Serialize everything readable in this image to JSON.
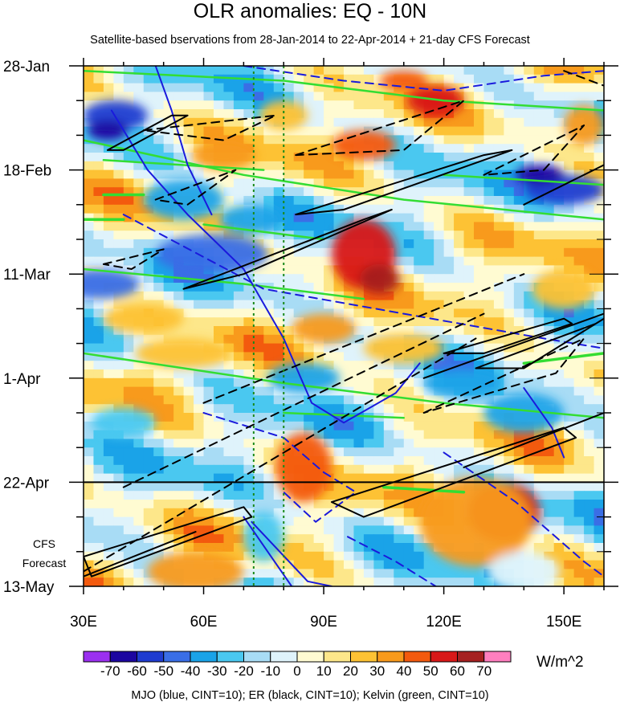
{
  "chart_data": {
    "type": "heatmap",
    "title": "OLR anomalies: EQ - 10N",
    "subtitle": "Satellite-based bservations from 28-Jan-2014 to 22-Apr-2014 + 21-day CFS Forecast",
    "xlabel": "",
    "ylabel": "",
    "x_ticks": [
      "30E",
      "60E",
      "90E",
      "120E",
      "150E"
    ],
    "x_tick_values": [
      30,
      60,
      90,
      120,
      150
    ],
    "xlim": [
      30,
      160
    ],
    "y_ticks": [
      "28-Jan",
      "18-Feb",
      "11-Mar",
      "1-Apr",
      "22-Apr",
      "13-May"
    ],
    "y_tick_days": [
      0,
      21,
      42,
      63,
      84,
      105
    ],
    "ylim_days": [
      0,
      105
    ],
    "y_axis_direction": "time increases downward",
    "observation_end": "22-Apr",
    "forecast_label_lines": [
      "CFS",
      "Forecast"
    ],
    "reference_lines_lon": [
      72.5,
      80
    ],
    "colorbar": {
      "levels": [
        "-70",
        "-60",
        "-50",
        "-40",
        "-30",
        "-20",
        "-10",
        "0",
        "10",
        "20",
        "30",
        "40",
        "50",
        "60",
        "70"
      ],
      "colors": [
        "#9b30f0",
        "#1c06a0",
        "#1f3cd0",
        "#3a6ee6",
        "#1aa3e8",
        "#4ac8f0",
        "#a8dcf5",
        "#dff3fb",
        "#fffbd2",
        "#fde78a",
        "#fdc234",
        "#f89a1c",
        "#f35a0e",
        "#d81818",
        "#a52020",
        "#ff7fbf"
      ],
      "units": "W/m^2"
    },
    "contour_legend": "MJO (blue, CINT=10); ER (black, CINT=10); Kelvin (green, CINT=10)",
    "contour_colors": {
      "mjo": "#1a1adc",
      "er": "#000000",
      "kelvin": "#33dd33"
    },
    "blobs": [
      {
        "lon": 38,
        "day": 10,
        "rx": 8,
        "ry": 3,
        "v": -60
      },
      {
        "lon": 36,
        "day": 13,
        "rx": 5,
        "ry": 2,
        "v": -70
      },
      {
        "lon": 34,
        "day": 44,
        "rx": 10,
        "ry": 3,
        "v": -50
      },
      {
        "lon": 62,
        "day": 38,
        "rx": 14,
        "ry": 4,
        "v": -50
      },
      {
        "lon": 72,
        "day": 31,
        "rx": 8,
        "ry": 3,
        "v": -40
      },
      {
        "lon": 55,
        "day": 27,
        "rx": 10,
        "ry": 4,
        "v": -40
      },
      {
        "lon": 100,
        "day": 38,
        "rx": 8,
        "ry": 7,
        "v": 50
      },
      {
        "lon": 104,
        "day": 43,
        "rx": 5,
        "ry": 3,
        "v": 60
      },
      {
        "lon": 118,
        "day": 7,
        "rx": 7,
        "ry": 3,
        "v": 50
      },
      {
        "lon": 110,
        "day": 3,
        "rx": 6,
        "ry": 2,
        "v": 40
      },
      {
        "lon": 100,
        "day": 16,
        "rx": 8,
        "ry": 3,
        "v": 40
      },
      {
        "lon": 135,
        "day": 90,
        "rx": 9,
        "ry": 6,
        "v": 50
      },
      {
        "lon": 128,
        "day": 92,
        "rx": 14,
        "ry": 9,
        "v": 30
      },
      {
        "lon": 58,
        "day": 102,
        "rx": 12,
        "ry": 4,
        "v": 30
      },
      {
        "lon": 85,
        "day": 81,
        "rx": 7,
        "ry": 7,
        "v": 40
      },
      {
        "lon": 150,
        "day": 25,
        "rx": 10,
        "ry": 3,
        "v": -60
      },
      {
        "lon": 144,
        "day": 22,
        "rx": 6,
        "ry": 2,
        "v": -70
      },
      {
        "lon": 140,
        "day": 70,
        "rx": 10,
        "ry": 4,
        "v": -40
      },
      {
        "lon": 125,
        "day": 64,
        "rx": 10,
        "ry": 3,
        "v": -40
      },
      {
        "lon": 85,
        "day": 63,
        "rx": 9,
        "ry": 3,
        "v": -40
      },
      {
        "lon": 55,
        "day": 58,
        "rx": 12,
        "ry": 3,
        "v": 20
      },
      {
        "lon": 45,
        "day": 51,
        "rx": 10,
        "ry": 3,
        "v": 20
      },
      {
        "lon": 75,
        "day": 95,
        "rx": 5,
        "ry": 5,
        "v": -30
      },
      {
        "lon": 150,
        "day": 45,
        "rx": 8,
        "ry": 4,
        "v": 20
      },
      {
        "lon": 155,
        "day": 12,
        "rx": 5,
        "ry": 4,
        "v": 30
      },
      {
        "lon": 90,
        "day": 53,
        "rx": 8,
        "ry": 3,
        "v": 30
      },
      {
        "lon": 110,
        "day": 57,
        "rx": 10,
        "ry": 3,
        "v": 20
      },
      {
        "lon": 40,
        "day": 72,
        "rx": 8,
        "ry": 3,
        "v": -30
      },
      {
        "lon": 65,
        "day": 18,
        "rx": 8,
        "ry": 3,
        "v": 30
      },
      {
        "lon": 80,
        "day": 10,
        "rx": 6,
        "ry": 3,
        "v": 20
      },
      {
        "lon": 140,
        "day": 102,
        "rx": 9,
        "ry": 4,
        "v": -10
      }
    ],
    "contours": {
      "er_solid": [
        [
          [
            36,
            17
          ],
          [
            52,
            10
          ],
          [
            56,
            10
          ],
          [
            40,
            17
          ],
          [
            36,
            17
          ]
        ],
        [
          [
            55,
            45
          ],
          [
            100,
            31
          ],
          [
            107,
            29
          ],
          [
            70,
            42
          ],
          [
            55,
            45
          ]
        ],
        [
          [
            83,
            30
          ],
          [
            130,
            18
          ],
          [
            137,
            17
          ],
          [
            95,
            29
          ],
          [
            83,
            30
          ]
        ],
        [
          [
            128,
            61
          ],
          [
            158,
            52
          ],
          [
            160,
            51
          ],
          [
            140,
            61
          ],
          [
            128,
            61
          ]
        ],
        [
          [
            120,
            58
          ],
          [
            150,
            51
          ],
          [
            152,
            52
          ],
          [
            130,
            58
          ],
          [
            120,
            58
          ]
        ],
        [
          [
            115,
            63
          ],
          [
            160,
            50
          ]
        ],
        [
          [
            92,
            88
          ],
          [
            150,
            73
          ],
          [
            153,
            75
          ],
          [
            100,
            91
          ],
          [
            92,
            88
          ]
        ],
        [
          [
            30,
            99
          ],
          [
            70,
            89
          ],
          [
            72,
            91
          ],
          [
            32,
            103
          ],
          [
            30,
            99
          ]
        ],
        [
          [
            30,
            103
          ],
          [
            58,
            94
          ]
        ],
        [
          [
            125,
            81
          ],
          [
            160,
            70
          ]
        ],
        [
          [
            140,
            28
          ],
          [
            160,
            20
          ]
        ]
      ],
      "er_dashed": [
        [
          [
            45,
            13
          ],
          [
            78,
            10
          ],
          [
            65,
            15
          ],
          [
            45,
            13
          ]
        ],
        [
          [
            48,
            27
          ],
          [
            68,
            21
          ],
          [
            56,
            28
          ],
          [
            48,
            27
          ]
        ],
        [
          [
            35,
            40
          ],
          [
            50,
            37
          ],
          [
            42,
            41
          ],
          [
            35,
            40
          ]
        ],
        [
          [
            30,
            102
          ],
          [
            128,
            55
          ]
        ],
        [
          [
            40,
            85
          ],
          [
            130,
            50
          ]
        ],
        [
          [
            60,
            68
          ],
          [
            140,
            42
          ]
        ],
        [
          [
            83,
            18
          ],
          [
            125,
            7
          ],
          [
            110,
            17
          ],
          [
            83,
            18
          ]
        ],
        [
          [
            130,
            22
          ],
          [
            155,
            12
          ],
          [
            145,
            21
          ],
          [
            130,
            22
          ]
        ],
        [
          [
            115,
            70
          ],
          [
            155,
            55
          ],
          [
            148,
            62
          ],
          [
            115,
            70
          ]
        ],
        [
          [
            150,
            1
          ],
          [
            160,
            4
          ]
        ]
      ],
      "mjo_solid": [
        [
          [
            37,
            9
          ],
          [
            46,
            21
          ],
          [
            56,
            30
          ],
          [
            70,
            41
          ],
          [
            80,
            55
          ],
          [
            87,
            68
          ],
          [
            95,
            72
          ],
          [
            108,
            66
          ],
          [
            114,
            60
          ]
        ],
        [
          [
            48,
            0
          ],
          [
            52,
            9
          ],
          [
            56,
            20
          ],
          [
            62,
            30
          ]
        ],
        [
          [
            72,
            92
          ],
          [
            86,
            104
          ],
          [
            92,
            105
          ]
        ],
        [
          [
            70,
            91
          ],
          [
            76,
            98
          ],
          [
            82,
            105
          ]
        ],
        [
          [
            140,
            65
          ],
          [
            147,
            73
          ],
          [
            150,
            79
          ]
        ]
      ],
      "mjo_dashed": [
        [
          [
            40,
            30
          ],
          [
            75,
            45
          ],
          [
            110,
            50
          ],
          [
            145,
            55
          ],
          [
            160,
            57
          ]
        ],
        [
          [
            70,
            0
          ],
          [
            95,
            3
          ],
          [
            120,
            5
          ],
          [
            145,
            2
          ],
          [
            160,
            1
          ]
        ],
        [
          [
            60,
            70
          ],
          [
            80,
            75
          ],
          [
            90,
            82
          ],
          [
            98,
            86
          ],
          [
            88,
            92
          ],
          [
            80,
            86
          ]
        ],
        [
          [
            120,
            78
          ],
          [
            138,
            88
          ],
          [
            155,
            100
          ],
          [
            160,
            103
          ]
        ],
        [
          [
            96,
            95
          ],
          [
            108,
            100
          ],
          [
            118,
            105
          ]
        ]
      ],
      "kelvin_solid": [
        [
          [
            30,
            15
          ],
          [
            70,
            22
          ],
          [
            110,
            27
          ],
          [
            160,
            31
          ]
        ],
        [
          [
            30,
            41
          ],
          [
            70,
            44
          ],
          [
            100,
            47
          ]
        ],
        [
          [
            30,
            58
          ],
          [
            80,
            64
          ],
          [
            120,
            68
          ],
          [
            160,
            71
          ]
        ],
        [
          [
            30,
            1
          ],
          [
            80,
            3
          ],
          [
            120,
            7
          ],
          [
            160,
            9
          ]
        ],
        [
          [
            80,
            70
          ],
          [
            110,
            71
          ]
        ],
        [
          [
            60,
            32
          ],
          [
            90,
            35
          ]
        ],
        [
          [
            35,
            19
          ],
          [
            75,
            21
          ]
        ],
        [
          [
            120,
            22
          ],
          [
            160,
            24
          ]
        ]
      ],
      "kelvin_thin": [
        [
          [
            35,
            26
          ],
          [
            45,
            26
          ]
        ],
        [
          [
            30,
            31
          ],
          [
            40,
            31
          ]
        ],
        [
          [
            140,
            60
          ],
          [
            160,
            58
          ]
        ],
        [
          [
            105,
            85
          ],
          [
            125,
            86
          ]
        ]
      ]
    }
  }
}
